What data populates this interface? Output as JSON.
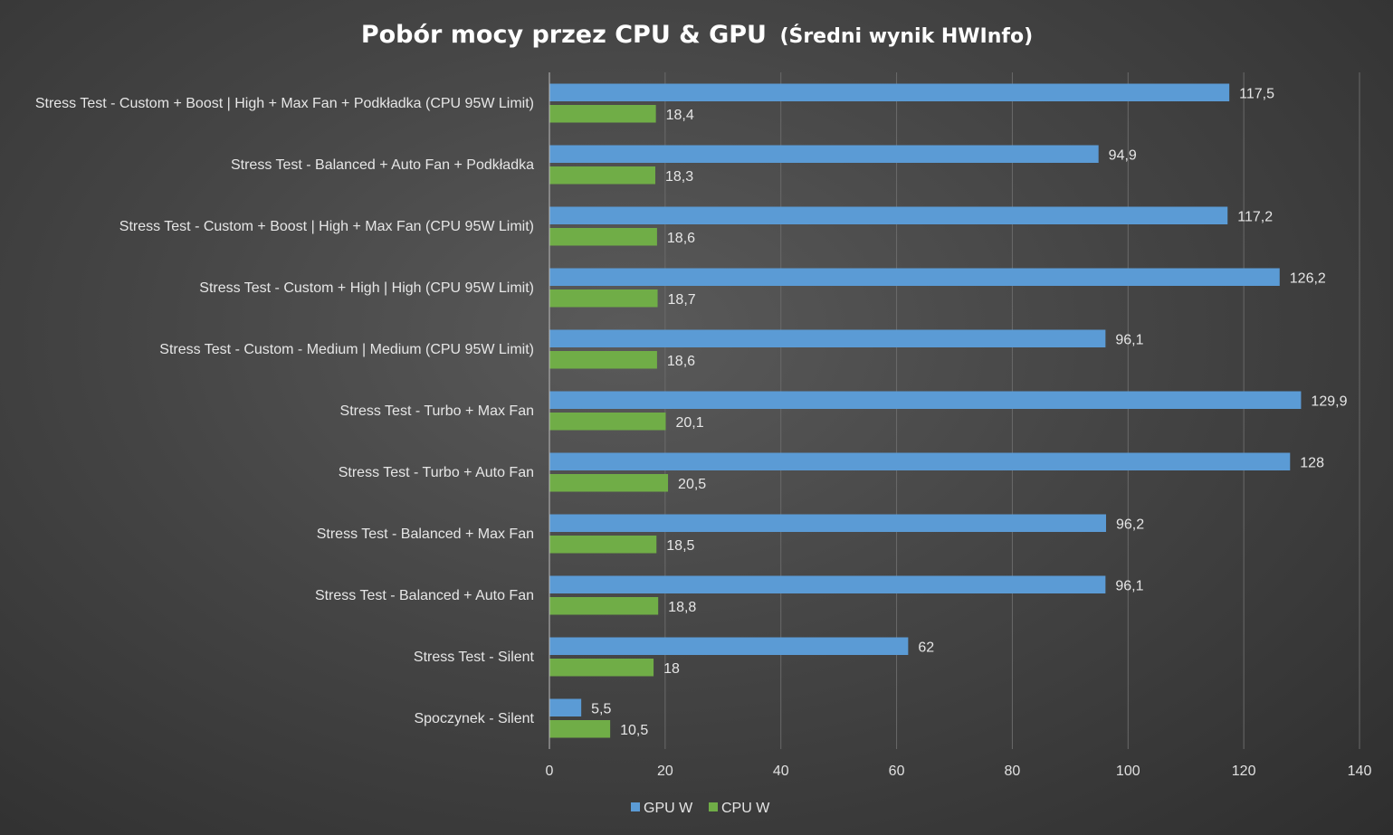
{
  "chart_data": {
    "type": "bar",
    "orientation": "horizontal",
    "title": "Pobór mocy przez CPU & GPU",
    "subtitle": "(Średni wynik HWInfo)",
    "categories": [
      "Stress Test - Custom + Boost | High + Max Fan + Podkładka (CPU 95W Limit)",
      "Stress Test - Balanced + Auto Fan + Podkładka",
      "Stress Test - Custom + Boost | High + Max Fan (CPU 95W Limit)",
      "Stress Test - Custom + High | High (CPU 95W Limit)",
      "Stress Test - Custom - Medium | Medium (CPU 95W Limit)",
      "Stress Test - Turbo + Max Fan",
      "Stress Test - Turbo + Auto Fan",
      "Stress Test - Balanced + Max Fan",
      "Stress Test - Balanced + Auto Fan",
      "Stress Test - Silent",
      "Spoczynek - Silent"
    ],
    "series": [
      {
        "name": "GPU W",
        "color": "#5b9bd5",
        "values": [
          117.5,
          94.9,
          117.2,
          126.2,
          96.1,
          129.9,
          128,
          96.2,
          96.1,
          62,
          5.5
        ],
        "labels": [
          "117,5",
          "94,9",
          "117,2",
          "126,2",
          "96,1",
          "129,9",
          "128",
          "96,2",
          "96,1",
          "62",
          "5,5"
        ]
      },
      {
        "name": "CPU W",
        "color": "#70ad47",
        "values": [
          18.4,
          18.3,
          18.6,
          18.7,
          18.6,
          20.1,
          20.5,
          18.5,
          18.8,
          18,
          10.5
        ],
        "labels": [
          "18,4",
          "18,3",
          "18,6",
          "18,7",
          "18,6",
          "20,1",
          "20,5",
          "18,5",
          "18,8",
          "18",
          "10,5"
        ]
      }
    ],
    "xlim": [
      0,
      140
    ],
    "xticks": [
      0,
      20,
      40,
      60,
      80,
      100,
      120,
      140
    ],
    "xlabel": "",
    "ylabel": "",
    "grid": true,
    "legend_position": "bottom"
  }
}
